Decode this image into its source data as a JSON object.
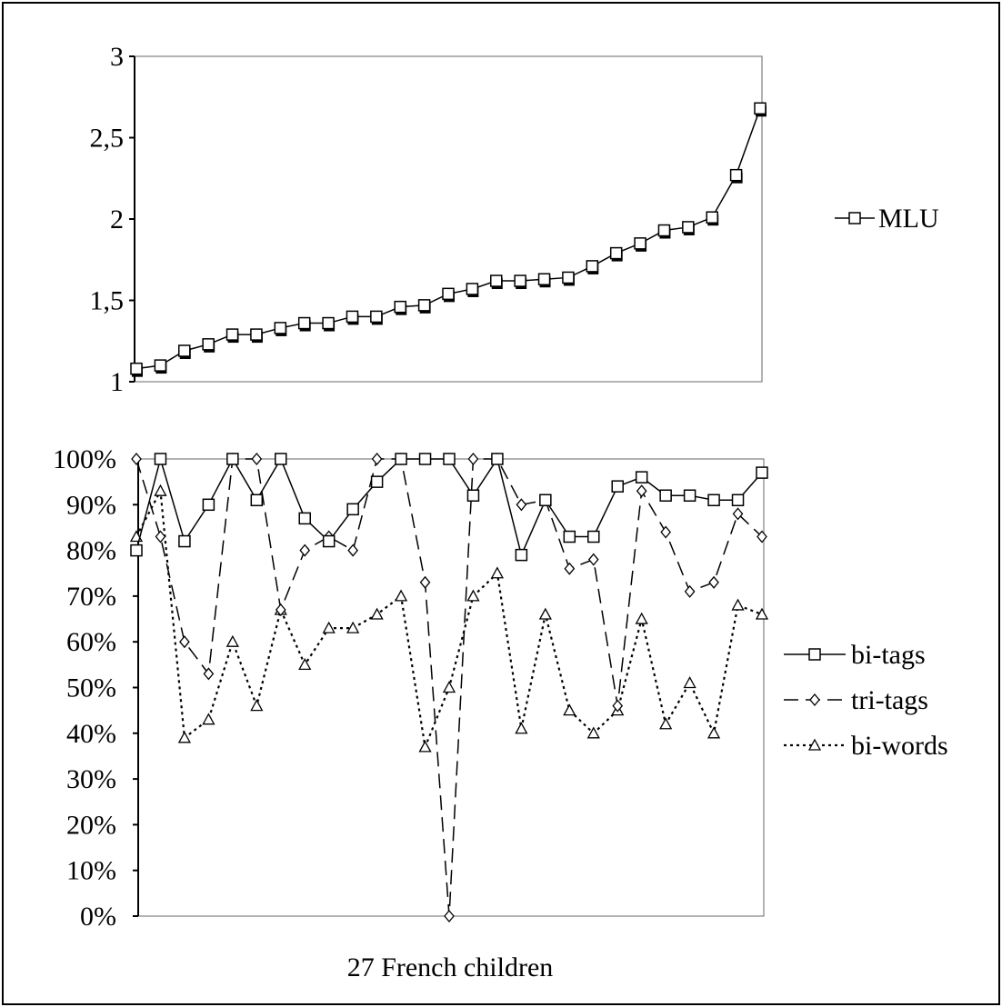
{
  "chart_data": [
    {
      "type": "line",
      "title": "",
      "xlabel": "",
      "ylabel": "",
      "ylim": [
        1,
        3
      ],
      "yticks": [
        "1",
        "1,5",
        "2",
        "2,5",
        "3"
      ],
      "ytick_values": [
        1,
        1.5,
        2,
        2.5,
        3
      ],
      "grid": false,
      "legend_position": "right",
      "x": [
        1,
        2,
        3,
        4,
        5,
        6,
        7,
        8,
        9,
        10,
        11,
        12,
        13,
        14,
        15,
        16,
        17,
        18,
        19,
        20,
        21,
        22,
        23,
        24,
        25,
        26,
        27
      ],
      "series": [
        {
          "name": "MLU",
          "marker": "square",
          "line_style": "solid",
          "values": [
            1.08,
            1.1,
            1.19,
            1.23,
            1.29,
            1.29,
            1.33,
            1.36,
            1.36,
            1.4,
            1.4,
            1.46,
            1.47,
            1.54,
            1.57,
            1.62,
            1.62,
            1.63,
            1.64,
            1.71,
            1.79,
            1.85,
            1.93,
            1.95,
            2.01,
            2.27,
            2.68
          ]
        }
      ]
    },
    {
      "type": "line",
      "title": "",
      "xlabel": "27 French children",
      "ylabel": "",
      "ylim": [
        0,
        100
      ],
      "yticks": [
        "0%",
        "10%",
        "20%",
        "30%",
        "40%",
        "50%",
        "60%",
        "70%",
        "80%",
        "90%",
        "100%"
      ],
      "ytick_values": [
        0,
        10,
        20,
        30,
        40,
        50,
        60,
        70,
        80,
        90,
        100
      ],
      "grid": false,
      "legend_position": "right",
      "x": [
        1,
        2,
        3,
        4,
        5,
        6,
        7,
        8,
        9,
        10,
        11,
        12,
        13,
        14,
        15,
        16,
        17,
        18,
        19,
        20,
        21,
        22,
        23,
        24,
        25,
        26,
        27
      ],
      "series": [
        {
          "name": "bi-tags",
          "marker": "square",
          "line_style": "solid",
          "values": [
            80,
            100,
            82,
            90,
            100,
            91,
            100,
            87,
            82,
            89,
            95,
            100,
            100,
            100,
            92,
            100,
            79,
            91,
            83,
            83,
            94,
            96,
            92,
            92,
            91,
            91,
            97
          ]
        },
        {
          "name": "tri-tags",
          "marker": "diamond",
          "line_style": "dashed",
          "values": [
            100,
            83,
            60,
            53,
            100,
            100,
            67,
            80,
            83,
            80,
            100,
            100,
            73,
            0,
            100,
            100,
            90,
            91,
            76,
            78,
            46,
            93,
            84,
            71,
            73,
            88,
            83
          ]
        },
        {
          "name": "bi-words",
          "marker": "triangle",
          "line_style": "dotted",
          "values": [
            83,
            93,
            39,
            43,
            60,
            46,
            67,
            55,
            63,
            63,
            66,
            70,
            37,
            50,
            70,
            75,
            41,
            66,
            45,
            40,
            45,
            65,
            42,
            51,
            40,
            68,
            66
          ]
        }
      ]
    }
  ]
}
